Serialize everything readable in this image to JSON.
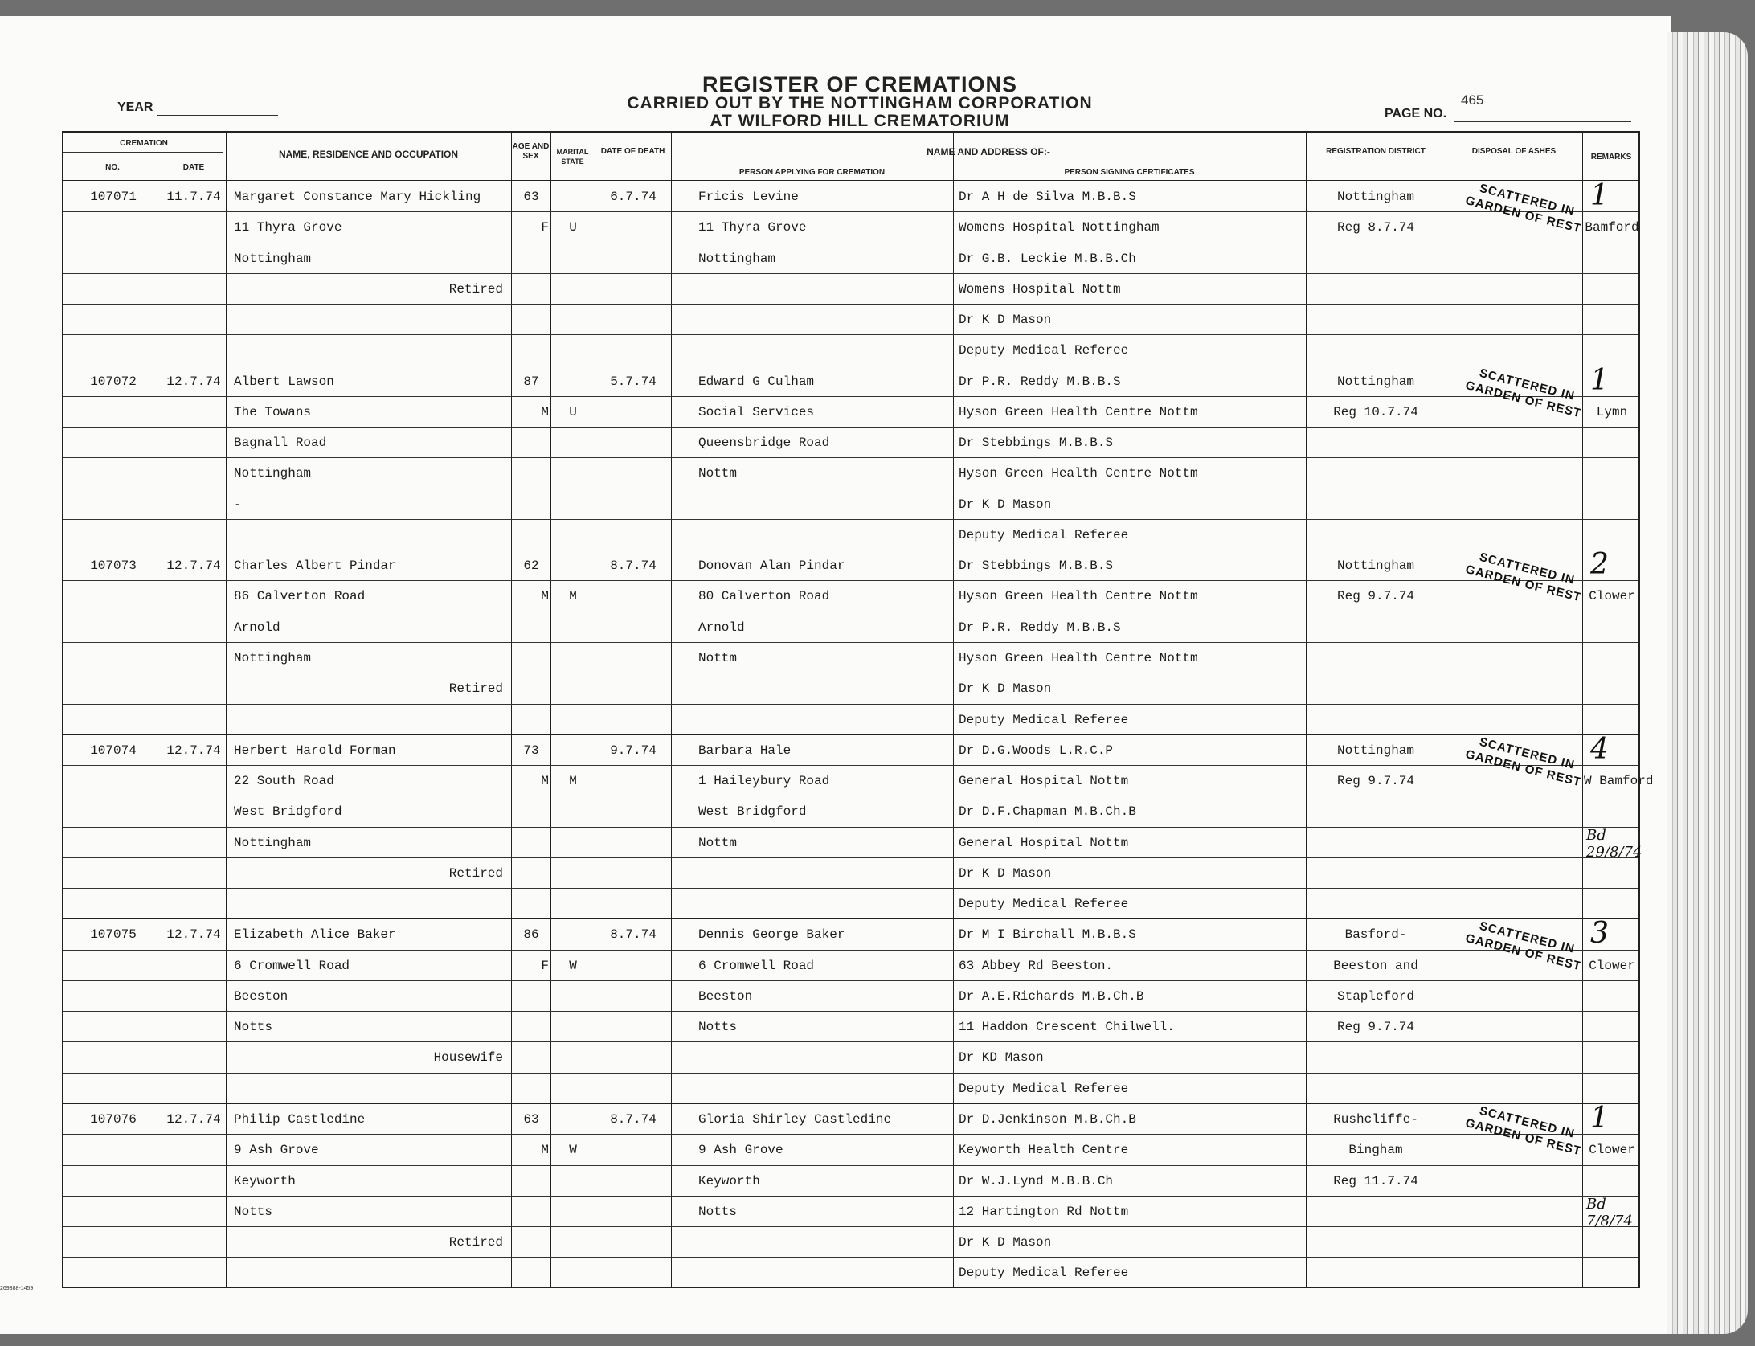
{
  "header": {
    "title": "REGISTER OF CREMATIONS",
    "subtitle_1": "CARRIED OUT BY THE NOTTINGHAM CORPORATION",
    "subtitle_2": "AT WILFORD HILL CREMATORIUM",
    "year_label": "YEAR",
    "page_no_label": "PAGE NO.",
    "page_no": "465"
  },
  "columns": {
    "cremation": "CREMATION",
    "no": "NO.",
    "date": "DATE",
    "name": "NAME, RESIDENCE AND OCCUPATION",
    "age_sex": "AGE AND SEX",
    "marital": "MARITAL STATE",
    "date_of_death": "DATE OF DEATH",
    "name_address_of": "NAME AND ADDRESS OF:-",
    "applicant": "PERSON APPLYING FOR CREMATION",
    "signer": "PERSON SIGNING CERTIFICATES",
    "district": "REGISTRATION DISTRICT",
    "disposal": "DISPOSAL OF ASHES",
    "remarks": "REMARKS"
  },
  "stamp_text": [
    "SCATTERED IN",
    "GARDEN OF REST"
  ],
  "records": [
    {
      "no": "107071",
      "date": "11.7.74",
      "name_lines": [
        "Margaret Constance Mary Hickling",
        "11 Thyra Grove",
        "Nottingham",
        "",
        "",
        ""
      ],
      "occupation": "Retired",
      "occupation_line": 3,
      "age": "63",
      "sex": "F",
      "marital": "U",
      "dod": "6.7.74",
      "applicant": [
        "Fricis Levine",
        "11 Thyra Grove",
        "Nottingham",
        "",
        "",
        ""
      ],
      "signer": [
        "Dr A H de Silva M.B.B.S",
        "Womens Hospital Nottingham",
        "Dr G.B. Leckie  M.B.B.Ch",
        "Womens Hospital Nottm",
        "Dr K D Mason",
        "Deputy Medical Referee"
      ],
      "district": [
        "Nottingham",
        "Reg 8.7.74",
        "",
        "",
        "",
        ""
      ],
      "remarks_number": "1",
      "remarks": "Bamford",
      "handwritten": ""
    },
    {
      "no": "107072",
      "date": "12.7.74",
      "name_lines": [
        "Albert Lawson",
        "The Towans",
        "Bagnall Road",
        "Nottingham",
        "-",
        ""
      ],
      "occupation": "",
      "occupation_line": 4,
      "age": "87",
      "sex": "M",
      "marital": "U",
      "dod": "5.7.74",
      "applicant": [
        "Edward G Culham",
        "Social Services",
        "Queensbridge Road",
        "Nottm",
        "",
        ""
      ],
      "signer": [
        "Dr P.R. Reddy M.B.B.S",
        "Hyson Green Health Centre Nottm",
        "Dr Stebbings M.B.B.S",
        "Hyson Green Health Centre Nottm",
        "Dr K D Mason",
        "Deputy Medical Referee"
      ],
      "district": [
        "Nottingham",
        "Reg 10.7.74",
        "",
        "",
        "",
        ""
      ],
      "remarks_number": "1",
      "remarks": "Lymn",
      "handwritten": ""
    },
    {
      "no": "107073",
      "date": "12.7.74",
      "name_lines": [
        "Charles Albert Pindar",
        "86 Calverton Road",
        "Arnold",
        "Nottingham",
        "",
        ""
      ],
      "occupation": "Retired",
      "occupation_line": 4,
      "age": "62",
      "sex": "M",
      "marital": "M",
      "dod": "8.7.74",
      "applicant": [
        "Donovan Alan Pindar",
        "80 Calverton Road",
        "Arnold",
        "Nottm",
        "",
        ""
      ],
      "signer": [
        "Dr Stebbings M.B.B.S",
        "Hyson Green Health Centre Nottm",
        "Dr P.R. Reddy M.B.B.S",
        "Hyson Green Health Centre Nottm",
        "Dr K D Mason",
        "Deputy Medical Referee"
      ],
      "district": [
        "Nottingham",
        "Reg 9.7.74",
        "",
        "",
        "",
        ""
      ],
      "remarks_number": "2",
      "remarks": "Clower",
      "handwritten": ""
    },
    {
      "no": "107074",
      "date": "12.7.74",
      "name_lines": [
        "Herbert Harold Forman",
        "22 South Road",
        "West Bridgford",
        "Nottingham",
        "",
        ""
      ],
      "occupation": "Retired",
      "occupation_line": 4,
      "age": "73",
      "sex": "M",
      "marital": "M",
      "dod": "9.7.74",
      "applicant": [
        "Barbara Hale",
        "1 Haileybury Road",
        "West Bridgford",
        "Nottm",
        "",
        ""
      ],
      "signer": [
        "Dr D.G.Woods L.R.C.P",
        "General Hospital Nottm",
        "Dr D.F.Chapman M.B.Ch.B",
        "General Hospital Nottm",
        "Dr K D Mason",
        "Deputy Medical Referee"
      ],
      "district": [
        "Nottingham",
        "Reg 9.7.74",
        "",
        "",
        "",
        ""
      ],
      "remarks_number": "4",
      "remarks": "W Bamford",
      "handwritten": "Bd 29/8/74"
    },
    {
      "no": "107075",
      "date": "12.7.74",
      "name_lines": [
        "Elizabeth Alice Baker",
        "6 Cromwell Road",
        "Beeston",
        "Notts",
        "",
        ""
      ],
      "occupation": "Housewife",
      "occupation_line": 4,
      "age": "86",
      "sex": "F",
      "marital": "W",
      "dod": "8.7.74",
      "applicant": [
        "Dennis George Baker",
        "6 Cromwell Road",
        "Beeston",
        "Notts",
        "",
        ""
      ],
      "signer": [
        "Dr M I Birchall M.B.B.S",
        "63 Abbey Rd Beeston.",
        "Dr A.E.Richards M.B.Ch.B",
        "11 Haddon Crescent Chilwell.",
        "Dr KD Mason",
        "Deputy Medical Referee"
      ],
      "district": [
        "Basford-",
        "Beeston and",
        "Stapleford",
        "Reg 9.7.74",
        "",
        ""
      ],
      "remarks_number": "3",
      "remarks": "Clower",
      "handwritten": ""
    },
    {
      "no": "107076",
      "date": "12.7.74",
      "name_lines": [
        "Philip Castledine",
        "9 Ash Grove",
        "Keyworth",
        "Notts",
        "",
        ""
      ],
      "occupation": "Retired",
      "occupation_line": 4,
      "age": "63",
      "sex": "M",
      "marital": "W",
      "dod": "8.7.74",
      "applicant": [
        "Gloria Shirley Castledine",
        "9 Ash Grove",
        "Keyworth",
        "Notts",
        "",
        ""
      ],
      "signer": [
        "Dr D.Jenkinson M.B.Ch.B",
        "Keyworth Health Centre",
        "Dr W.J.Lynd M.B.B.Ch",
        "12 Hartington Rd Nottm",
        "Dr K D Mason",
        "Deputy Medical Referee"
      ],
      "district": [
        "Rushcliffe-",
        "Bingham",
        "Reg 11.7.74",
        "",
        "",
        ""
      ],
      "remarks_number": "1",
      "remarks": "Clower",
      "handwritten": "Bd 7/8/74"
    }
  ],
  "footer_code": "269388-1459"
}
